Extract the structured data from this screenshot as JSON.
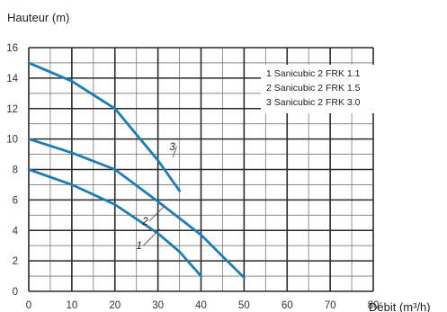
{
  "chart_data": {
    "type": "line",
    "ylabel": "Hauteur (m)",
    "xlabel": "Débit (m³/h)",
    "xlim": [
      0,
      80
    ],
    "ylim": [
      0,
      16
    ],
    "xticks": [
      0,
      10,
      20,
      30,
      40,
      50,
      60,
      70,
      80
    ],
    "yticks": [
      0,
      2,
      4,
      6,
      8,
      10,
      12,
      14,
      16
    ],
    "grid": true,
    "legend_placement": "top-right",
    "line_color": "#1c7db5",
    "legend": [
      "1 Sanicubic 2 FRK 1.1",
      "2 Sanicubic 2 FRK 1.5",
      "3 Sanicubic 2 FRK 3.0"
    ],
    "series": [
      {
        "name": "1",
        "x": [
          0,
          10,
          20,
          30,
          35,
          40
        ],
        "y": [
          8.0,
          7.0,
          5.7,
          3.8,
          2.6,
          1.0
        ]
      },
      {
        "name": "2",
        "x": [
          0,
          10,
          20,
          30,
          40,
          50
        ],
        "y": [
          10.0,
          9.1,
          8.0,
          5.9,
          3.7,
          0.9
        ]
      },
      {
        "name": "3",
        "x": [
          0,
          10,
          20,
          30,
          35
        ],
        "y": [
          15.0,
          13.8,
          12.0,
          8.6,
          6.6
        ]
      }
    ],
    "curve_labels": [
      {
        "text": "1",
        "x": 25.8,
        "y": 2.9,
        "tip_x": 30.5,
        "tip_y": 4.1
      },
      {
        "text": "2",
        "x": 27.2,
        "y": 4.5,
        "tip_x": 31.5,
        "tip_y": 5.6
      },
      {
        "text": "3",
        "x": 33.5,
        "y": 9.4,
        "tip_x": 33.5,
        "tip_y": 8.8
      }
    ]
  }
}
